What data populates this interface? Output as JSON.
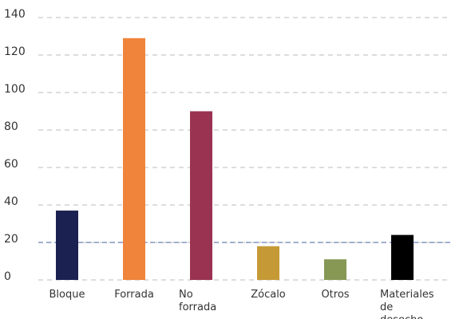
{
  "chart_data": {
    "type": "bar",
    "categories": [
      "Bloque",
      "Forrada",
      "No forrada",
      "Zócalo",
      "Otros",
      "Materiales de desecho"
    ],
    "values": [
      37,
      129,
      90,
      18,
      11,
      24
    ],
    "colors": [
      "#1b2150",
      "#f0843a",
      "#9a3352",
      "#c59a36",
      "#869854",
      "#000000"
    ],
    "ylim": [
      0,
      140
    ],
    "yticks": [
      0,
      20,
      40,
      60,
      80,
      100,
      120,
      140
    ],
    "grid": true,
    "reference_line": {
      "value": 20,
      "color": "#6b7fb8"
    }
  }
}
